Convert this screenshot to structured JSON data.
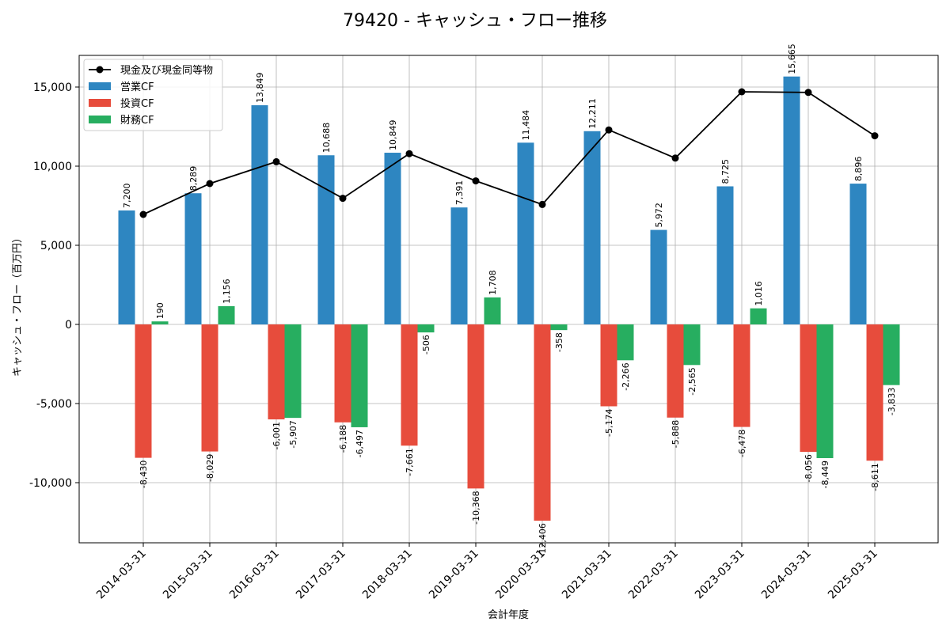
{
  "chart_data": {
    "type": "bar",
    "title": "79420 - キャッシュ・フロー推移",
    "xlabel": "会計年度",
    "ylabel": "キャッシュ・フロー（百万円）",
    "ylim": [
      -13800,
      17000
    ],
    "yticks": [
      -10000,
      -5000,
      0,
      5000,
      10000,
      15000
    ],
    "ytick_labels": [
      "-10,000",
      "-5,000",
      "0",
      "5,000",
      "10,000",
      "15,000"
    ],
    "grid": true,
    "legend_position": "top-left",
    "categories": [
      "2014-03-31",
      "2015-03-31",
      "2016-03-31",
      "2017-03-31",
      "2018-03-31",
      "2019-03-31",
      "2020-03-31",
      "2021-03-31",
      "2022-03-31",
      "2023-03-31",
      "2024-03-31",
      "2025-03-31"
    ],
    "series": [
      {
        "name": "営業CF",
        "kind": "bar",
        "color": "#2e86c1",
        "values": [
          7200,
          8289,
          13849,
          10688,
          10849,
          7391,
          11484,
          12211,
          5972,
          8725,
          15665,
          8896
        ]
      },
      {
        "name": "投資CF",
        "kind": "bar",
        "color": "#e74c3c",
        "values": [
          -8430,
          -8029,
          -6001,
          -6188,
          -7661,
          -10368,
          -12406,
          -5174,
          -5888,
          -6478,
          -8056,
          -8611
        ]
      },
      {
        "name": "財務CF",
        "kind": "bar",
        "color": "#27ae60",
        "values": [
          190,
          1156,
          -5907,
          -6497,
          -506,
          1708,
          -358,
          -2266,
          -2565,
          1016,
          -8449,
          -3833
        ]
      },
      {
        "name": "現金及び現金同等物",
        "kind": "line",
        "color": "#000000",
        "values": [
          6950,
          8900,
          10280,
          7970,
          10790,
          9070,
          7580,
          12290,
          10510,
          14700,
          14660,
          11920
        ]
      }
    ]
  }
}
